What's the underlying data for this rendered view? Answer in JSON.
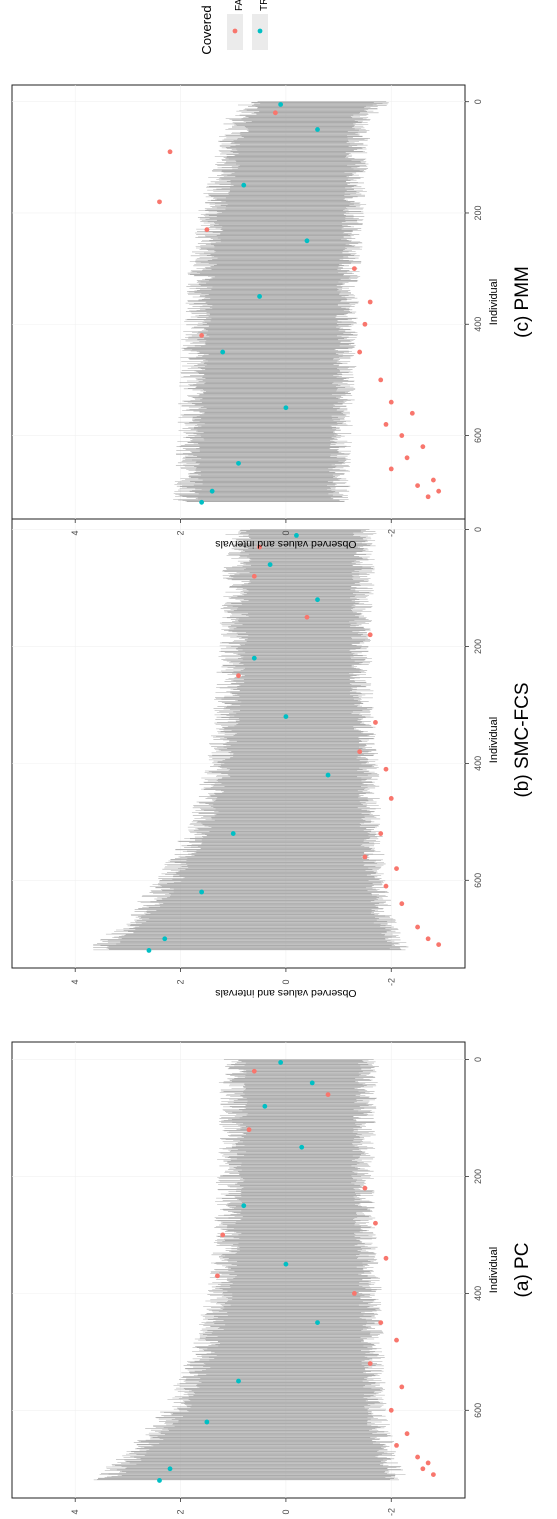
{
  "chart_data": [
    {
      "type": "scatter",
      "id": "pc",
      "caption": "(a) PC",
      "xlabel": "Individual",
      "ylabel": "Observed values and intervals",
      "xlim": [
        -30,
        750
      ],
      "ylim": [
        -3.4,
        5.2
      ],
      "x_ticks": [
        0,
        200,
        400,
        600
      ],
      "y_ticks": [
        -2,
        0,
        2,
        4
      ],
      "y_tick_labels": [
        "-2",
        "0",
        "2",
        "4"
      ],
      "n_individuals": 720,
      "interval_lower": [
        [
          0,
          -1.55
        ],
        [
          100,
          -1.5
        ],
        [
          200,
          -1.45
        ],
        [
          300,
          -1.5
        ],
        [
          400,
          -1.6
        ],
        [
          500,
          -1.65
        ],
        [
          600,
          -1.7
        ],
        [
          680,
          -1.9
        ],
        [
          720,
          -2.1
        ]
      ],
      "interval_upper": [
        [
          0,
          1.0
        ],
        [
          100,
          1.0
        ],
        [
          200,
          1.05
        ],
        [
          300,
          1.1
        ],
        [
          400,
          1.25
        ],
        [
          500,
          1.55
        ],
        [
          600,
          2.1
        ],
        [
          680,
          2.9
        ],
        [
          720,
          3.5
        ]
      ],
      "series": [
        {
          "name": "FALSE",
          "color": "#F8766D",
          "points": [
            [
              20,
              0.6
            ],
            [
              60,
              -0.8
            ],
            [
              120,
              0.7
            ],
            [
              220,
              -1.5
            ],
            [
              280,
              -1.7
            ],
            [
              300,
              1.2
            ],
            [
              340,
              -1.9
            ],
            [
              370,
              1.3
            ],
            [
              400,
              -1.3
            ],
            [
              450,
              -1.8
            ],
            [
              480,
              -2.1
            ],
            [
              520,
              -1.6
            ],
            [
              560,
              -2.2
            ],
            [
              600,
              -2.0
            ],
            [
              640,
              -2.3
            ],
            [
              660,
              -2.1
            ],
            [
              680,
              -2.5
            ],
            [
              690,
              -2.7
            ],
            [
              700,
              -2.6
            ],
            [
              710,
              -2.8
            ]
          ]
        },
        {
          "name": "TRUE",
          "color": "#00BFC4",
          "points": [
            [
              5,
              0.1
            ],
            [
              40,
              -0.5
            ],
            [
              80,
              0.4
            ],
            [
              150,
              -0.3
            ],
            [
              250,
              0.8
            ],
            [
              350,
              0.0
            ],
            [
              450,
              -0.6
            ],
            [
              550,
              0.9
            ],
            [
              620,
              1.5
            ],
            [
              700,
              2.2
            ],
            [
              720,
              2.4
            ]
          ]
        }
      ]
    },
    {
      "type": "scatter",
      "id": "smc-fcs",
      "caption": "(b) SMC-FCS",
      "xlabel": "Individual",
      "ylabel": "Observed values and intervals",
      "xlim": [
        -30,
        750
      ],
      "ylim": [
        -3.4,
        5.2
      ],
      "x_ticks": [
        0,
        200,
        400,
        600
      ],
      "y_ticks": [
        -2,
        0,
        2,
        4
      ],
      "y_tick_labels": [
        "-2",
        "0",
        "2",
        "4"
      ],
      "n_individuals": 720,
      "interval_lower": [
        [
          0,
          -1.5
        ],
        [
          100,
          -1.45
        ],
        [
          200,
          -1.4
        ],
        [
          300,
          -1.45
        ],
        [
          400,
          -1.55
        ],
        [
          500,
          -1.6
        ],
        [
          600,
          -1.7
        ],
        [
          680,
          -1.9
        ],
        [
          720,
          -2.2
        ]
      ],
      "interval_upper": [
        [
          0,
          0.9
        ],
        [
          100,
          0.95
        ],
        [
          200,
          1.0
        ],
        [
          300,
          1.1
        ],
        [
          400,
          1.25
        ],
        [
          500,
          1.6
        ],
        [
          600,
          2.2
        ],
        [
          680,
          3.0
        ],
        [
          720,
          3.6
        ]
      ],
      "series": [
        {
          "name": "FALSE",
          "color": "#F8766D",
          "points": [
            [
              30,
              0.5
            ],
            [
              80,
              0.6
            ],
            [
              150,
              -0.4
            ],
            [
              180,
              -1.6
            ],
            [
              250,
              0.9
            ],
            [
              330,
              -1.7
            ],
            [
              380,
              -1.4
            ],
            [
              410,
              -1.9
            ],
            [
              460,
              -2.0
            ],
            [
              520,
              -1.8
            ],
            [
              560,
              -1.5
            ],
            [
              580,
              -2.1
            ],
            [
              610,
              -1.9
            ],
            [
              640,
              -2.2
            ],
            [
              680,
              -2.5
            ],
            [
              700,
              -2.7
            ],
            [
              710,
              -2.9
            ]
          ]
        },
        {
          "name": "TRUE",
          "color": "#00BFC4",
          "points": [
            [
              10,
              -0.2
            ],
            [
              60,
              0.3
            ],
            [
              120,
              -0.6
            ],
            [
              220,
              0.6
            ],
            [
              320,
              0.0
            ],
            [
              420,
              -0.8
            ],
            [
              520,
              1.0
            ],
            [
              620,
              1.6
            ],
            [
              700,
              2.3
            ],
            [
              720,
              2.6
            ]
          ]
        }
      ]
    },
    {
      "type": "scatter",
      "id": "pmm",
      "caption": "(c) PMM",
      "xlabel": "Individual",
      "ylabel": "Observed values and intervals",
      "xlim": [
        -30,
        750
      ],
      "ylim": [
        -3.4,
        5.2
      ],
      "x_ticks": [
        0,
        200,
        400,
        600
      ],
      "y_ticks": [
        -2,
        0,
        2,
        4
      ],
      "y_tick_labels": [
        "-2",
        "0",
        "2",
        "4"
      ],
      "n_individuals": 720,
      "interval_lower": [
        [
          0,
          -1.85
        ],
        [
          30,
          -1.4
        ],
        [
          100,
          -1.35
        ],
        [
          200,
          -1.3
        ],
        [
          300,
          -1.2
        ],
        [
          400,
          -1.15
        ],
        [
          500,
          -1.1
        ],
        [
          600,
          -1.05
        ],
        [
          700,
          -1.0
        ],
        [
          720,
          -1.0
        ]
      ],
      "interval_upper": [
        [
          0,
          0.6
        ],
        [
          30,
          0.9
        ],
        [
          100,
          1.1
        ],
        [
          200,
          1.4
        ],
        [
          300,
          1.6
        ],
        [
          400,
          1.7
        ],
        [
          500,
          1.75
        ],
        [
          600,
          1.8
        ],
        [
          700,
          1.85
        ],
        [
          720,
          1.9
        ]
      ],
      "series": [
        {
          "name": "FALSE",
          "color": "#F8766D",
          "points": [
            [
              20,
              0.2
            ],
            [
              90,
              2.2
            ],
            [
              180,
              2.4
            ],
            [
              230,
              1.5
            ],
            [
              300,
              -1.3
            ],
            [
              360,
              -1.6
            ],
            [
              400,
              -1.5
            ],
            [
              420,
              1.6
            ],
            [
              450,
              -1.4
            ],
            [
              500,
              -1.8
            ],
            [
              540,
              -2.0
            ],
            [
              560,
              -2.4
            ],
            [
              580,
              -1.9
            ],
            [
              600,
              -2.2
            ],
            [
              620,
              -2.6
            ],
            [
              640,
              -2.3
            ],
            [
              660,
              -2.0
            ],
            [
              680,
              -2.8
            ],
            [
              690,
              -2.5
            ],
            [
              700,
              -2.9
            ],
            [
              710,
              -2.7
            ]
          ]
        },
        {
          "name": "TRUE",
          "color": "#00BFC4",
          "points": [
            [
              5,
              0.1
            ],
            [
              50,
              -0.6
            ],
            [
              150,
              0.8
            ],
            [
              250,
              -0.4
            ],
            [
              350,
              0.5
            ],
            [
              450,
              1.2
            ],
            [
              550,
              0.0
            ],
            [
              650,
              0.9
            ],
            [
              700,
              1.4
            ],
            [
              720,
              1.6
            ]
          ]
        }
      ]
    }
  ],
  "legend": {
    "title": "Covered",
    "items": [
      {
        "label": "FALSE",
        "color": "#F8766D"
      },
      {
        "label": "TRUE",
        "color": "#00BFC4"
      }
    ]
  },
  "colors": {
    "interval": "#9E9E9E",
    "false": "#F8766D",
    "true": "#00BFC4"
  }
}
